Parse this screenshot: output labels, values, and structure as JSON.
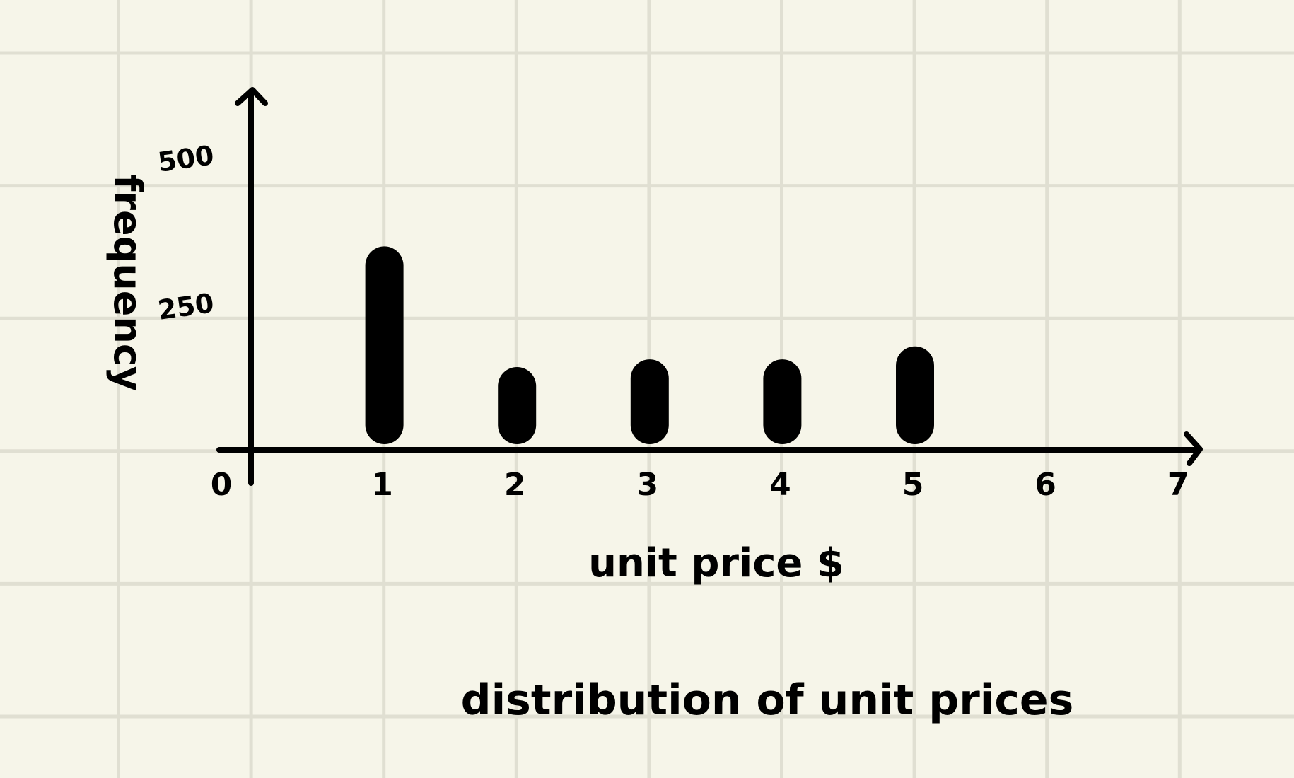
{
  "page": {
    "background": "#f6f5e9",
    "grid_color": "#e0dfd2",
    "ink": "#000000"
  },
  "chart_data": {
    "type": "bar",
    "title": "distribution of unit prices",
    "xlabel": "unit price $",
    "ylabel": "frequency",
    "x": [
      1,
      2,
      3,
      4,
      5
    ],
    "values": [
      344,
      140,
      153,
      153,
      175
    ],
    "x_ticks": [
      "0",
      "1",
      "2",
      "3",
      "4",
      "5",
      "6",
      "7"
    ],
    "y_ticks": [
      {
        "value": 250,
        "label": "250"
      },
      {
        "value": 500,
        "label": "500"
      }
    ],
    "xlim": [
      0,
      7
    ],
    "ylim": [
      0,
      500
    ],
    "grid": true,
    "legend": "none"
  }
}
